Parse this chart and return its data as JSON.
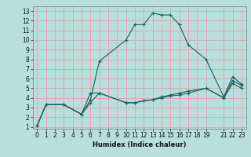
{
  "title": "",
  "xlabel": "Humidex (Indice chaleur)",
  "bg_color": "#b8dede",
  "line_color": "#1a6060",
  "grid_color": "#e8a0a0",
  "xlim": [
    -0.5,
    23.5
  ],
  "ylim": [
    0.8,
    13.5
  ],
  "xticks": [
    0,
    1,
    2,
    3,
    4,
    5,
    6,
    7,
    8,
    9,
    10,
    11,
    12,
    13,
    14,
    15,
    16,
    17,
    18,
    19,
    21,
    22,
    23
  ],
  "xtick_labels": [
    "0",
    "1",
    "2",
    "3",
    "4",
    "5",
    "6",
    "7",
    "8",
    "9",
    "10",
    "11",
    "12",
    "13",
    "14",
    "15",
    "16",
    "17",
    "18",
    "19",
    "21",
    "22",
    "23"
  ],
  "yticks": [
    1,
    2,
    3,
    4,
    5,
    6,
    7,
    8,
    9,
    10,
    11,
    12,
    13
  ],
  "lines": [
    {
      "x": [
        0,
        1,
        3,
        5,
        6,
        7,
        10,
        11,
        12,
        13,
        14,
        15,
        16,
        17,
        19,
        21,
        22,
        23
      ],
      "y": [
        1.1,
        3.3,
        3.3,
        2.3,
        3.8,
        7.8,
        10.0,
        11.6,
        11.6,
        12.8,
        12.6,
        12.6,
        11.6,
        9.5,
        8.0,
        4.1,
        6.2,
        5.4
      ]
    },
    {
      "x": [
        0,
        1,
        3,
        5,
        6,
        7,
        10,
        11,
        12,
        13,
        14,
        15,
        16,
        17,
        19,
        21,
        22,
        23
      ],
      "y": [
        1.1,
        3.3,
        3.3,
        2.3,
        3.5,
        4.5,
        3.5,
        3.5,
        3.7,
        3.8,
        4.0,
        4.2,
        4.3,
        4.5,
        5.0,
        4.0,
        5.5,
        5.0
      ]
    },
    {
      "x": [
        0,
        1,
        3,
        5,
        6,
        7,
        10,
        11,
        12,
        13,
        14,
        15,
        16,
        17,
        19,
        21,
        22,
        23
      ],
      "y": [
        1.1,
        3.3,
        3.3,
        2.3,
        4.5,
        4.5,
        3.5,
        3.5,
        3.7,
        3.8,
        4.1,
        4.3,
        4.5,
        4.7,
        5.0,
        4.0,
        5.8,
        5.3
      ]
    }
  ],
  "tick_fontsize": 5.5,
  "xlabel_fontsize": 6.0,
  "linewidth": 0.8,
  "markersize": 3.5,
  "markeredgewidth": 0.8
}
